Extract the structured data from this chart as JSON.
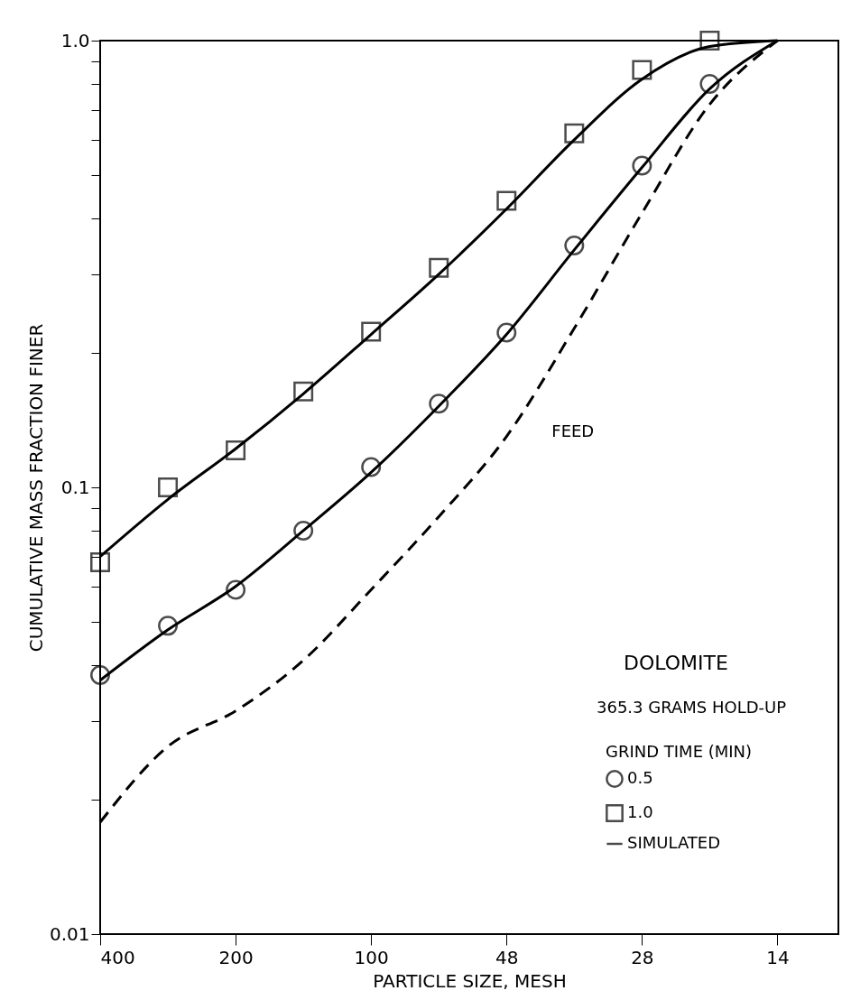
{
  "chart_data": {
    "type": "scatter",
    "xlabel": "PARTICLE SIZE, MESH",
    "ylabel": "CUMULATIVE MASS FRACTION FINER",
    "categories": [
      "400",
      null,
      "200",
      null,
      "100",
      null,
      "48",
      null,
      "28",
      null,
      "14"
    ],
    "log": true,
    "ylim": [
      0.01,
      1
    ],
    "yticks": [
      {
        "value": 0.01,
        "label": "0.01"
      },
      {
        "value": 0.02,
        "label": null
      },
      {
        "value": 0.03,
        "label": null
      },
      {
        "value": 0.04,
        "label": null
      },
      {
        "value": 0.05,
        "label": null
      },
      {
        "value": 0.06,
        "label": null
      },
      {
        "value": 0.07,
        "label": null
      },
      {
        "value": 0.08,
        "label": null
      },
      {
        "value": 0.09,
        "label": null
      },
      {
        "value": 0.1,
        "label": "0.1"
      },
      {
        "value": 0.2,
        "label": null
      },
      {
        "value": 0.3,
        "label": null
      },
      {
        "value": 0.4,
        "label": null
      },
      {
        "value": 0.5,
        "label": null
      },
      {
        "value": 0.6,
        "label": null
      },
      {
        "value": 0.7,
        "label": null
      },
      {
        "value": 0.8,
        "label": null
      },
      {
        "value": 0.9,
        "label": null
      },
      {
        "value": 1,
        "label": "1.0"
      }
    ],
    "grid": false,
    "legend": "bottom right",
    "legend_title": "GRIND TIME (MIN)",
    "series": [
      {
        "name": "0.5",
        "type": "scatter",
        "marker": "circle",
        "color": "#000000",
        "values": [
          0.038,
          0.049,
          0.059,
          0.08,
          0.111,
          0.154,
          0.222,
          0.348,
          0.525,
          0.8,
          null
        ]
      },
      {
        "name": "1.0",
        "type": "scatter",
        "marker": "square",
        "color": "#000000",
        "values": [
          0.068,
          0.1,
          0.121,
          0.164,
          0.223,
          0.31,
          0.438,
          0.62,
          0.86,
          1.0,
          null
        ]
      },
      {
        "name": "SIMULATED",
        "type": "line",
        "line_style": "solid",
        "color": "#000000",
        "values": [
          0.037,
          0.048,
          0.06,
          0.08,
          0.108,
          0.152,
          0.22,
          0.34,
          0.52,
          0.78,
          1.0
        ]
      },
      {
        "type": "line",
        "line_style": "solid",
        "color": "#000000",
        "values": [
          0.07,
          0.094,
          0.122,
          0.162,
          0.22,
          0.3,
          0.42,
          0.6,
          0.82,
          0.97,
          1.0
        ]
      },
      {
        "type": "line",
        "line_style": "dashed",
        "color": "#000000",
        "values": [
          0.0178,
          0.0263,
          0.0316,
          0.041,
          0.059,
          0.086,
          0.13,
          0.227,
          0.411,
          0.72,
          1.0
        ]
      }
    ],
    "annotations": [
      "DOLOMITE",
      "365.3 GRAMS HOLD-UP",
      {
        "text": "FEED",
        "x": "48",
        "y": 0.13
      }
    ]
  }
}
